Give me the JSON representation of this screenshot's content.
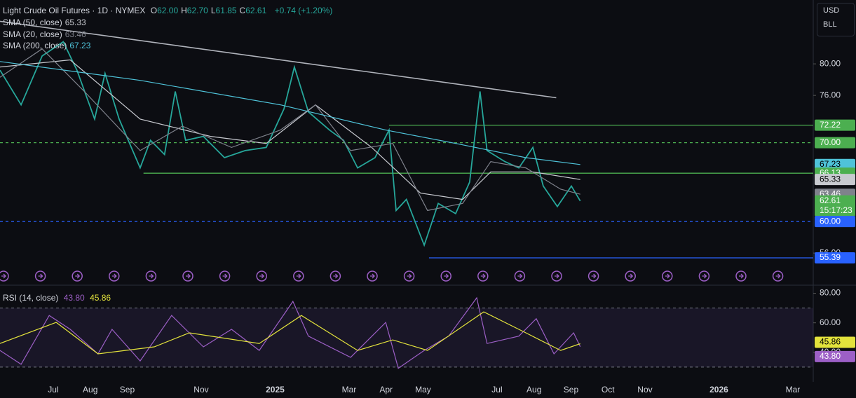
{
  "header": {
    "symbol": "Light Crude Oil Futures · 1D · NYMEX",
    "ohlc": [
      {
        "key": "O",
        "value": "62.00"
      },
      {
        "key": "H",
        "value": "62.70"
      },
      {
        "key": "L",
        "value": "61.85"
      },
      {
        "key": "C",
        "value": "62.61"
      }
    ],
    "change": "+0.74 (+1.20%)"
  },
  "currency": "USD",
  "unit": "BLL",
  "chart_data": [
    {
      "type": "line",
      "xlim": [
        4.56,
        26.55
      ],
      "ylim": [
        52.1,
        88.1
      ],
      "xticks": [
        {
          "value": 6,
          "label": "Jul"
        },
        {
          "value": 7,
          "label": "Aug"
        },
        {
          "value": 8,
          "label": "Sep"
        },
        {
          "value": 10,
          "label": "Nov"
        },
        {
          "value": 12,
          "label": "2025"
        },
        {
          "value": 14,
          "label": "Mar"
        },
        {
          "value": 15,
          "label": "Apr"
        },
        {
          "value": 16,
          "label": "May"
        },
        {
          "value": 18,
          "label": "Jul"
        },
        {
          "value": 19,
          "label": "Aug"
        },
        {
          "value": 20,
          "label": "Sep"
        },
        {
          "value": 21,
          "label": "Oct"
        },
        {
          "value": 22,
          "label": "Nov"
        },
        {
          "value": 24,
          "label": "2026"
        },
        {
          "value": 26,
          "label": "Mar"
        }
      ],
      "yticks": [
        {
          "value": 80,
          "label": "80.00"
        },
        {
          "value": 76,
          "label": "76.00"
        },
        {
          "value": 56,
          "label": "56.00"
        }
      ],
      "series": [
        {
          "color": "#26a69a",
          "x": [
            4.56,
            5.13,
            5.7,
            6.27,
            6.64,
            7.12,
            7.4,
            7.78,
            8.35,
            8.63,
            9.01,
            9.3,
            9.58,
            10.06,
            10.63,
            11.19,
            11.76,
            12.24,
            12.52,
            12.9,
            13.47,
            13.85,
            14.23,
            14.7,
            15.08,
            15.27,
            15.55,
            16.03,
            16.41,
            16.88,
            17.26,
            17.54,
            17.73,
            18.21,
            18.59,
            18.97,
            19.25,
            19.63,
            20.01,
            20.25
          ],
          "values": [
            79.2,
            74.8,
            81,
            82.8,
            79.2,
            73,
            78.8,
            73,
            66.8,
            70.3,
            68.5,
            76.5,
            70.3,
            70.8,
            68.1,
            69,
            69.4,
            74.3,
            79.6,
            73.9,
            71.6,
            70.3,
            66.8,
            68.1,
            71.6,
            61.4,
            62.8,
            57,
            62.3,
            61,
            65,
            76.5,
            69,
            67.6,
            66.8,
            69.4,
            64.5,
            61.9,
            64.5,
            62.61
          ]
        },
        {
          "name": "SMA (50, close)",
          "color": "#c8cad0",
          "last_label": "65.33",
          "x": [
            4.56,
            6.46,
            8.35,
            10.25,
            11.76,
            13.09,
            14.61,
            15.93,
            17.07,
            17.83,
            18.97,
            20.25
          ],
          "values": [
            79.6,
            80.5,
            73,
            70.8,
            69.9,
            74.8,
            69.4,
            63.6,
            62.8,
            66.3,
            66.3,
            65.33
          ]
        },
        {
          "name": "SMA (20, close)",
          "color": "#7f828c",
          "last_label": "63.46",
          "x": [
            4.56,
            5.7,
            6.84,
            8.35,
            9.49,
            10.82,
            12.14,
            13.09,
            14.04,
            15.18,
            16.12,
            17.07,
            17.83,
            18.78,
            19.72,
            20.25
          ],
          "values": [
            78.3,
            81.9,
            76.5,
            69,
            72.1,
            69.4,
            71.6,
            74.8,
            69,
            69.9,
            61.4,
            62.3,
            67.6,
            66.8,
            64.1,
            63.46
          ]
        },
        {
          "name": "SMA (200, close)",
          "color": "#4fc3d9",
          "last_label": "67.23",
          "x": [
            4.56,
            8.35,
            12.14,
            14.99,
            16.88,
            18.78,
            20.25
          ],
          "values": [
            80.3,
            77.9,
            74.8,
            71.6,
            69.9,
            68.1,
            67.23
          ]
        }
      ],
      "trendline": {
        "x": [
          4.56,
          19.6
        ],
        "values": [
          85.4,
          75.7
        ],
        "color": "#b0b3bb"
      },
      "levels": [
        {
          "value": 72.22,
          "x_start": 15.08,
          "color": "#4caf50",
          "style": "solid"
        },
        {
          "value": 70,
          "x_start": 4.56,
          "color": "#4caf50",
          "style": "dashed"
        },
        {
          "value": 66.13,
          "x_start": 8.44,
          "color": "#4caf50",
          "style": "solid"
        },
        {
          "value": 60,
          "x_start": 4.56,
          "color": "#2962ff",
          "style": "dashed"
        },
        {
          "value": 55.39,
          "x_start": 16.16,
          "color": "#2962ff",
          "style": "solid"
        }
      ],
      "price_labels": [
        {
          "value": 72.22,
          "label": "72.22",
          "color": "#4caf50"
        },
        {
          "value": 70,
          "label": "70.00",
          "color": "#4caf50"
        },
        {
          "value": 67.23,
          "label": "67.23",
          "color": "#4fc3d9"
        },
        {
          "value": 66.13,
          "label": "66.13",
          "color": "#4caf50"
        },
        {
          "value": 65.33,
          "label": "65.33",
          "color": "#c8cad0"
        },
        {
          "value": 63.46,
          "label": "63.46",
          "color": "#7f828c"
        },
        {
          "value": 62.61,
          "label": "62.61",
          "color": "#4caf50",
          "countdown": "15:17:23"
        },
        {
          "value": 60,
          "label": "60.00",
          "color": "#2962ff"
        },
        {
          "value": 55.39,
          "label": "55.39",
          "color": "#2962ff"
        }
      ]
    },
    {
      "type": "line",
      "title": "RSI (14, close)",
      "xlim": [
        4.56,
        26.55
      ],
      "ylim": [
        20,
        85
      ],
      "band": [
        30,
        70
      ],
      "yticks": [
        {
          "value": 80,
          "label": "80.00"
        },
        {
          "value": 60,
          "label": "60.00"
        },
        {
          "value": 40,
          "label": "40.00"
        }
      ],
      "series": [
        {
          "color": "#9c5fc6",
          "last_label": "43.80",
          "x": [
            4.56,
            5.13,
            5.89,
            6.46,
            7.21,
            7.59,
            8.35,
            9.2,
            10.06,
            10.82,
            11.57,
            12.48,
            12.9,
            14.04,
            14.99,
            15.33,
            16.03,
            16.69,
            17.45,
            17.73,
            18.59,
            19.06,
            19.54,
            20.07,
            20.25
          ],
          "values": [
            41.3,
            31.9,
            65,
            55.6,
            39,
            55.6,
            34.2,
            65,
            43.7,
            55.6,
            41.3,
            74.5,
            51,
            36.6,
            60.3,
            29.2,
            41.3,
            51,
            76.9,
            46,
            51,
            62.8,
            39,
            53.2,
            43.8
          ]
        },
        {
          "color": "#e3e33c",
          "last_label": "45.86",
          "x": [
            4.56,
            6.08,
            7.21,
            8.73,
            9.68,
            11.57,
            12.71,
            14.23,
            15.18,
            16.12,
            17.64,
            18.78,
            19.72,
            20.25
          ],
          "values": [
            46,
            60.3,
            39,
            43.7,
            53.2,
            46,
            65,
            41.3,
            48.4,
            41.3,
            67.4,
            53.2,
            41.3,
            45.86
          ]
        }
      ]
    }
  ]
}
